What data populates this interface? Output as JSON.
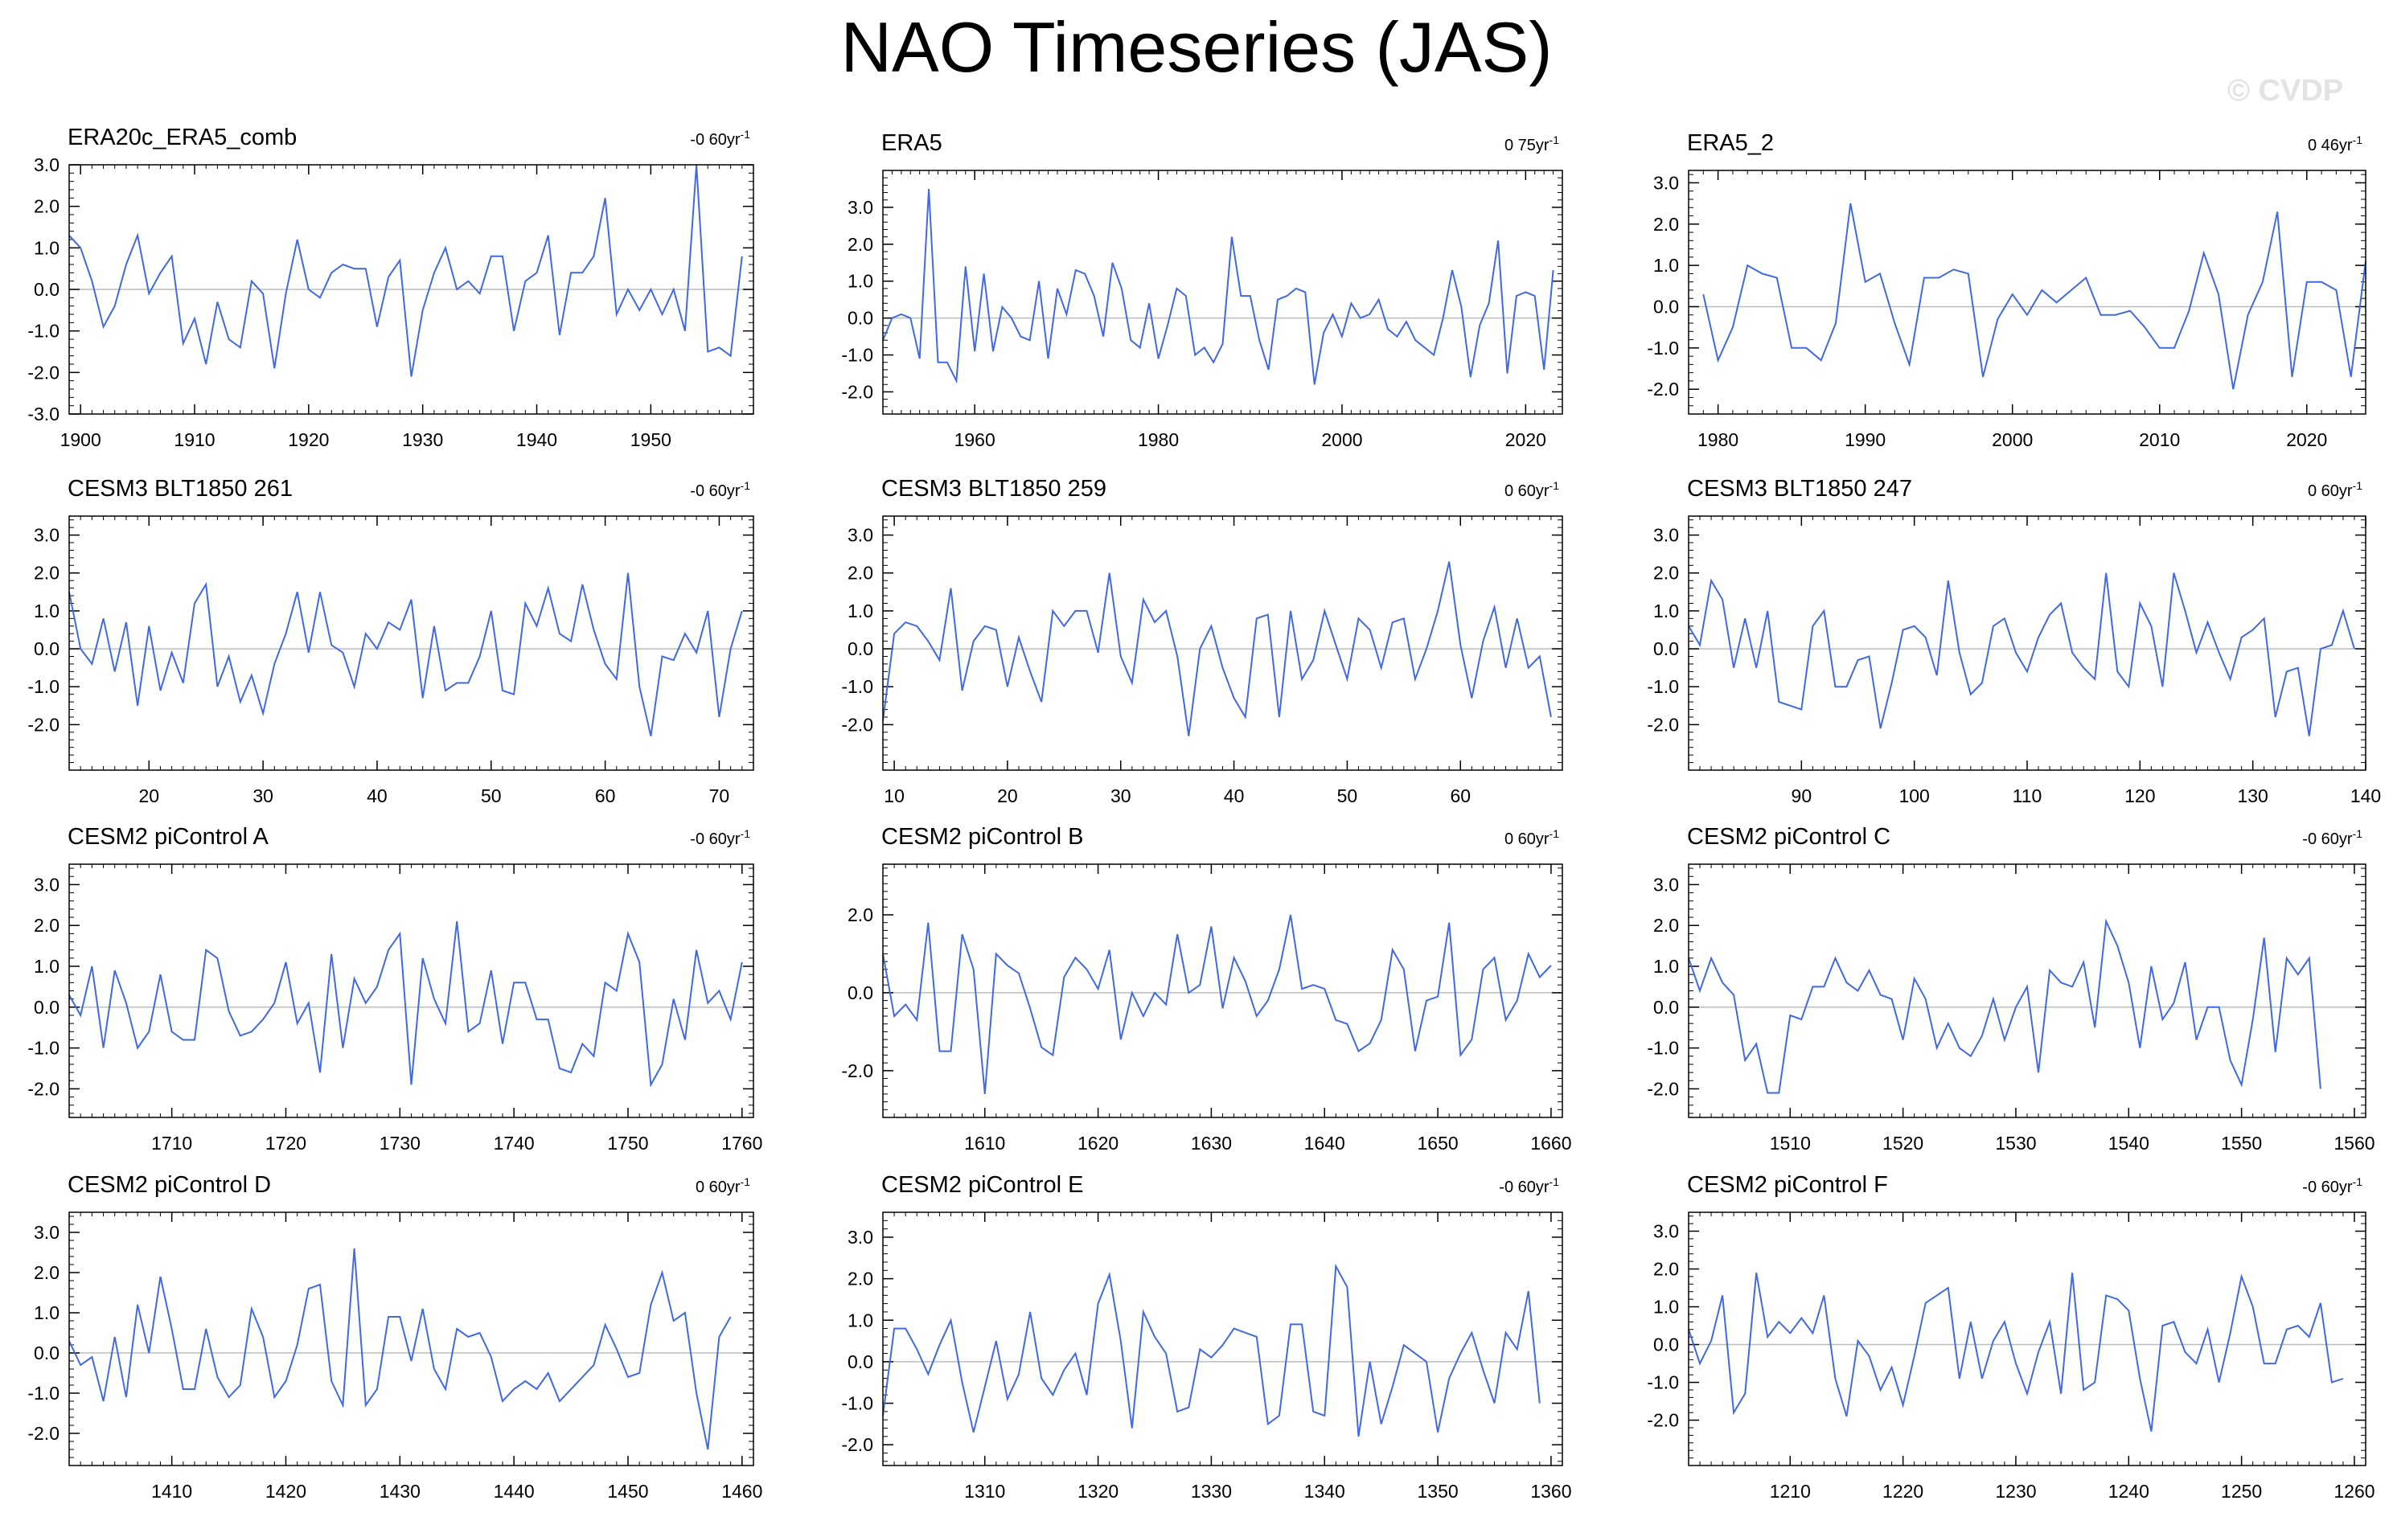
{
  "figure": {
    "title": "NAO Timeseries (JAS)",
    "watermark": "© CVDP",
    "line_color": "#4169e1",
    "zero_line_color": "#bdbdbd"
  },
  "chart_data": [
    {
      "type": "line",
      "title": "ERA20c_ERA5_comb",
      "trend": "-0 60yr",
      "xlim": [
        1899,
        1959
      ],
      "ylim": [
        -3,
        3
      ],
      "yticks": [
        -3,
        -2,
        -1,
        0,
        1,
        2,
        3
      ],
      "xticks": [
        1900,
        1910,
        1920,
        1930,
        1940,
        1950
      ],
      "x_start": 1899,
      "values": [
        1.3,
        1.0,
        0.2,
        -0.9,
        -0.4,
        0.6,
        1.3,
        -0.1,
        0.4,
        0.8,
        -1.3,
        -0.7,
        -1.8,
        -0.3,
        -1.2,
        -1.4,
        0.2,
        -0.1,
        -1.9,
        -0.1,
        1.2,
        0.0,
        -0.2,
        0.4,
        0.6,
        0.5,
        0.5,
        -0.9,
        0.3,
        0.7,
        -2.1,
        -0.5,
        0.4,
        1.0,
        0.0,
        0.2,
        -0.1,
        0.8,
        0.8,
        -1.0,
        0.2,
        0.4,
        1.3,
        -1.1,
        0.4,
        0.4,
        0.8,
        2.2,
        -0.6,
        0.0,
        -0.5,
        0.0,
        -0.6,
        0.0,
        -1.0,
        3.0,
        -1.5,
        -1.4,
        -1.6,
        0.8
      ]
    },
    {
      "type": "line",
      "title": "ERA5",
      "trend": "0 75yr",
      "xlim": [
        1950,
        2024
      ],
      "ylim": [
        -2.6,
        4.0
      ],
      "yticks": [
        -2,
        -1,
        0,
        1,
        2,
        3
      ],
      "xticks": [
        1960,
        1980,
        2000,
        2020
      ],
      "x_start": 1950,
      "values": [
        -0.6,
        0.0,
        0.1,
        0.0,
        -1.1,
        3.5,
        -1.2,
        -1.2,
        -1.7,
        1.4,
        -0.9,
        1.2,
        -0.9,
        0.3,
        0.0,
        -0.5,
        -0.6,
        1.0,
        -1.1,
        0.8,
        0.1,
        1.3,
        1.2,
        0.6,
        -0.5,
        1.5,
        0.8,
        -0.6,
        -0.8,
        0.4,
        -1.1,
        -0.2,
        0.8,
        0.6,
        -1.0,
        -0.8,
        -1.2,
        -0.7,
        2.2,
        0.6,
        0.6,
        -0.6,
        -1.4,
        0.5,
        0.6,
        0.8,
        0.7,
        -1.8,
        -0.4,
        0.1,
        -0.5,
        0.4,
        0.0,
        0.1,
        0.5,
        -0.3,
        -0.5,
        -0.1,
        -0.6,
        -0.8,
        -1.0,
        0.0,
        1.3,
        0.3,
        -1.6,
        -0.2,
        0.4,
        2.1,
        -1.5,
        0.6,
        0.7,
        0.6,
        -1.4,
        1.3
      ]
    },
    {
      "type": "line",
      "title": "ERA5_2",
      "trend": "0 46yr",
      "xlim": [
        1978,
        2024
      ],
      "ylim": [
        -2.6,
        3.3
      ],
      "yticks": [
        -2,
        -1,
        0,
        1,
        2,
        3
      ],
      "xticks": [
        1980,
        1990,
        2000,
        2010,
        2020
      ],
      "x_start": 1979,
      "values": [
        0.3,
        -1.3,
        -0.5,
        1.0,
        0.8,
        0.7,
        -1.0,
        -1.0,
        -1.3,
        -0.4,
        2.5,
        0.6,
        0.8,
        -0.4,
        -1.4,
        0.7,
        0.7,
        0.9,
        0.8,
        -1.7,
        -0.3,
        0.3,
        -0.2,
        0.4,
        0.1,
        0.4,
        0.7,
        -0.2,
        -0.2,
        -0.1,
        -0.5,
        -1.0,
        -1.0,
        -0.1,
        1.3,
        0.3,
        -2.0,
        -0.2,
        0.6,
        2.3,
        -1.7,
        0.6,
        0.6,
        0.4,
        -1.7,
        1.1
      ]
    },
    {
      "type": "line",
      "title": "CESM3 BLT1850 261",
      "trend": "-0 60yr",
      "xlim": [
        13,
        73
      ],
      "ylim": [
        -3.2,
        3.5
      ],
      "yticks": [
        -2,
        -1,
        0,
        1,
        2,
        3
      ],
      "xticks": [
        20,
        30,
        40,
        50,
        60,
        70
      ],
      "x_start": 13,
      "values": [
        1.5,
        0.0,
        -0.4,
        0.8,
        -0.6,
        0.7,
        -1.5,
        0.6,
        -1.1,
        -0.1,
        -0.9,
        1.2,
        1.7,
        -1.0,
        -0.2,
        -1.4,
        -0.7,
        -1.7,
        -0.4,
        0.4,
        1.5,
        -0.1,
        1.5,
        0.1,
        -0.1,
        -1.0,
        0.4,
        0.0,
        0.7,
        0.5,
        1.3,
        -1.3,
        0.6,
        -1.1,
        -0.9,
        -0.9,
        -0.2,
        1.0,
        -1.1,
        -1.2,
        1.2,
        0.6,
        1.6,
        0.4,
        0.2,
        1.7,
        0.5,
        -0.4,
        -0.8,
        2.0,
        -1.0,
        -2.3,
        -0.2,
        -0.3,
        0.4,
        -0.1,
        1.0,
        -1.8,
        0.0,
        1.0
      ]
    },
    {
      "type": "line",
      "title": "CESM3 BLT1850 259",
      "trend": "0 60yr",
      "xlim": [
        9,
        69
      ],
      "ylim": [
        -3.2,
        3.5
      ],
      "yticks": [
        -2,
        -1,
        0,
        1,
        2,
        3
      ],
      "xticks": [
        10,
        20,
        30,
        40,
        50,
        60
      ],
      "x_start": 9,
      "values": [
        -1.9,
        0.4,
        0.7,
        0.6,
        0.2,
        -0.3,
        1.6,
        -1.1,
        0.2,
        0.6,
        0.5,
        -1.0,
        0.3,
        -0.6,
        -1.4,
        1.0,
        0.6,
        1.0,
        1.0,
        -0.1,
        2.0,
        -0.2,
        -0.9,
        1.3,
        0.7,
        1.0,
        -0.2,
        -2.3,
        0.0,
        0.6,
        -0.5,
        -1.3,
        -1.8,
        0.8,
        0.9,
        -1.8,
        1.0,
        -0.8,
        -0.3,
        1.0,
        0.1,
        -0.8,
        0.8,
        0.5,
        -0.5,
        0.7,
        0.8,
        -0.8,
        0.0,
        1.0,
        2.3,
        0.1,
        -1.3,
        0.2,
        1.1,
        -0.5,
        0.8,
        -0.5,
        -0.2,
        -1.8
      ]
    },
    {
      "type": "line",
      "title": "CESM3 BLT1850 247",
      "trend": "0 60yr",
      "xlim": [
        80,
        140
      ],
      "ylim": [
        -3.2,
        3.5
      ],
      "yticks": [
        -2,
        -1,
        0,
        1,
        2,
        3
      ],
      "xticks": [
        90,
        100,
        110,
        120,
        130,
        140
      ],
      "x_start": 80,
      "values": [
        0.6,
        0.1,
        1.8,
        1.3,
        -0.5,
        0.8,
        -0.5,
        1.0,
        -1.4,
        -1.5,
        -1.6,
        0.6,
        1.0,
        -1.0,
        -1.0,
        -0.3,
        -0.2,
        -2.1,
        -0.9,
        0.5,
        0.6,
        0.3,
        -0.7,
        1.8,
        -0.1,
        -1.2,
        -0.9,
        0.6,
        0.8,
        -0.1,
        -0.6,
        0.3,
        0.9,
        1.2,
        -0.1,
        -0.5,
        -0.8,
        2.0,
        -0.6,
        -1.0,
        1.2,
        0.6,
        -1.0,
        2.0,
        1.0,
        -0.1,
        0.7,
        -0.1,
        -0.8,
        0.3,
        0.5,
        0.8,
        -1.8,
        -0.6,
        -0.5,
        -2.3,
        0.0,
        0.1,
        1.0,
        0.0
      ]
    },
    {
      "type": "line",
      "title": "CESM2 piControl A",
      "trend": "-0 60yr",
      "xlim": [
        1701,
        1761
      ],
      "ylim": [
        -2.7,
        3.5
      ],
      "yticks": [
        -2,
        -1,
        0,
        1,
        2,
        3
      ],
      "xticks": [
        1710,
        1720,
        1730,
        1740,
        1750,
        1760
      ],
      "x_start": 1701,
      "values": [
        0.3,
        -0.2,
        1.0,
        -1.0,
        0.9,
        0.1,
        -1.0,
        -0.6,
        0.8,
        -0.6,
        -0.8,
        -0.8,
        1.4,
        1.2,
        -0.1,
        -0.7,
        -0.6,
        -0.3,
        0.1,
        1.1,
        -0.4,
        0.1,
        -1.6,
        1.3,
        -1.0,
        0.7,
        0.1,
        0.5,
        1.4,
        1.8,
        -1.9,
        1.2,
        0.2,
        -0.4,
        2.1,
        -0.6,
        -0.4,
        0.9,
        -0.9,
        0.6,
        0.6,
        -0.3,
        -0.3,
        -1.5,
        -1.6,
        -0.9,
        -1.2,
        0.6,
        0.4,
        1.8,
        1.1,
        -1.9,
        -1.4,
        0.2,
        -0.8,
        1.4,
        0.1,
        0.4,
        -0.3,
        1.1
      ]
    },
    {
      "type": "line",
      "title": "CESM2 piControl B",
      "trend": "0 60yr",
      "xlim": [
        1601,
        1661
      ],
      "ylim": [
        -3.2,
        3.3
      ],
      "yticks": [
        -2,
        0,
        2
      ],
      "xticks": [
        1610,
        1620,
        1630,
        1640,
        1650,
        1660
      ],
      "x_start": 1601,
      "values": [
        1.0,
        -0.6,
        -0.3,
        -0.7,
        1.8,
        -1.5,
        -1.5,
        1.5,
        0.6,
        -2.6,
        1.0,
        0.7,
        0.5,
        -0.4,
        -1.4,
        -1.6,
        0.4,
        0.9,
        0.6,
        0.1,
        1.1,
        -1.2,
        0.0,
        -0.6,
        0.0,
        -0.3,
        1.5,
        0.0,
        0.2,
        1.7,
        -0.4,
        0.9,
        0.3,
        -0.6,
        -0.2,
        0.6,
        2.0,
        0.1,
        0.2,
        0.1,
        -0.7,
        -0.8,
        -1.5,
        -1.3,
        -0.7,
        1.1,
        0.6,
        -1.5,
        -0.2,
        -0.1,
        1.8,
        -1.6,
        -1.2,
        0.6,
        0.9,
        -0.7,
        -0.2,
        1.0,
        0.4,
        0.7
      ]
    },
    {
      "type": "line",
      "title": "CESM2 piControl C",
      "trend": "-0 60yr",
      "xlim": [
        1501,
        1561
      ],
      "ylim": [
        -2.7,
        3.5
      ],
      "yticks": [
        -2,
        -1,
        0,
        1,
        2,
        3
      ],
      "xticks": [
        1510,
        1520,
        1530,
        1540,
        1550,
        1560
      ],
      "x_start": 1501,
      "values": [
        1.2,
        0.4,
        1.2,
        0.6,
        0.3,
        -1.3,
        -0.9,
        -2.1,
        -2.1,
        -0.2,
        -0.3,
        0.5,
        0.5,
        1.2,
        0.6,
        0.4,
        0.9,
        0.3,
        0.2,
        -0.8,
        0.7,
        0.2,
        -1.0,
        -0.4,
        -1.0,
        -1.2,
        -0.7,
        0.2,
        -0.8,
        0.0,
        0.5,
        -1.6,
        0.9,
        0.6,
        0.5,
        1.1,
        -0.5,
        2.1,
        1.5,
        0.6,
        -1.0,
        1.0,
        -0.3,
        0.1,
        1.1,
        -0.8,
        0.0,
        0.0,
        -1.3,
        -1.9,
        -0.3,
        1.7,
        -1.1,
        1.2,
        0.8,
        1.2,
        -2.0
      ]
    },
    {
      "type": "line",
      "title": "CESM2 piControl D",
      "trend": "0 60yr",
      "xlim": [
        1401,
        1461
      ],
      "ylim": [
        -2.8,
        3.5
      ],
      "yticks": [
        -2,
        -1,
        0,
        1,
        2,
        3
      ],
      "xticks": [
        1410,
        1420,
        1430,
        1440,
        1450,
        1460
      ],
      "x_start": 1401,
      "values": [
        0.3,
        -0.3,
        -0.1,
        -1.2,
        0.4,
        -1.1,
        1.2,
        0.0,
        1.9,
        0.6,
        -0.9,
        -0.9,
        0.6,
        -0.6,
        -1.1,
        -0.8,
        1.1,
        0.4,
        -1.1,
        -0.7,
        0.2,
        1.6,
        1.7,
        -0.7,
        -1.3,
        2.6,
        -1.3,
        -0.9,
        0.9,
        0.9,
        -0.2,
        1.1,
        -0.4,
        -0.9,
        0.6,
        0.4,
        0.5,
        -0.1,
        -1.2,
        -0.9,
        -0.7,
        -0.9,
        -0.5,
        -1.2,
        -0.9,
        -0.6,
        -0.3,
        0.7,
        0.1,
        -0.6,
        -0.5,
        1.2,
        2.0,
        0.8,
        1.0,
        -1.0,
        -2.4,
        0.4,
        0.9
      ]
    },
    {
      "type": "line",
      "title": "CESM2 piControl E",
      "trend": "-0 60yr",
      "xlim": [
        1301,
        1361
      ],
      "ylim": [
        -2.5,
        3.6
      ],
      "yticks": [
        -2,
        -1,
        0,
        1,
        2,
        3
      ],
      "xticks": [
        1310,
        1320,
        1330,
        1340,
        1350,
        1360
      ],
      "x_start": 1301,
      "values": [
        -1.3,
        0.8,
        0.8,
        0.3,
        -0.3,
        0.4,
        1.0,
        -0.5,
        -1.7,
        -0.6,
        0.5,
        -0.9,
        -0.3,
        1.2,
        -0.4,
        -0.8,
        -0.2,
        0.2,
        -0.8,
        1.4,
        2.1,
        0.5,
        -1.6,
        1.2,
        0.6,
        0.2,
        -1.2,
        -1.1,
        0.3,
        0.1,
        0.4,
        0.8,
        0.7,
        0.6,
        -1.5,
        -1.3,
        0.9,
        0.9,
        -1.2,
        -1.3,
        2.3,
        1.8,
        -1.8,
        0.0,
        -1.5,
        -0.6,
        0.4,
        0.2,
        0.0,
        -1.7,
        -0.4,
        0.2,
        0.7,
        -0.2,
        -1.0,
        0.7,
        0.3,
        1.7,
        -1.0
      ]
    },
    {
      "type": "line",
      "title": "CESM2 piControl F",
      "trend": "-0 60yr",
      "xlim": [
        1201,
        1261
      ],
      "ylim": [
        -3.2,
        3.5
      ],
      "yticks": [
        -2,
        -1,
        0,
        1,
        2,
        3
      ],
      "xticks": [
        1210,
        1220,
        1230,
        1240,
        1250,
        1260
      ],
      "x_start": 1201,
      "values": [
        0.4,
        -0.5,
        0.1,
        1.3,
        -1.8,
        -1.3,
        1.9,
        0.2,
        0.6,
        0.3,
        0.7,
        0.3,
        1.3,
        -0.9,
        -1.9,
        0.1,
        -0.3,
        -1.2,
        -0.6,
        -1.6,
        -0.3,
        1.1,
        1.3,
        1.5,
        -0.9,
        0.6,
        -0.9,
        0.1,
        0.6,
        -0.5,
        -1.3,
        -0.2,
        0.6,
        -1.3,
        1.9,
        -1.2,
        -1.0,
        1.3,
        1.2,
        0.9,
        -0.9,
        -2.3,
        0.5,
        0.6,
        -0.2,
        -0.5,
        0.4,
        -1.0,
        0.3,
        1.8,
        1.0,
        -0.5,
        -0.5,
        0.4,
        0.5,
        0.2,
        1.1,
        -1.0,
        -0.9
      ]
    }
  ]
}
